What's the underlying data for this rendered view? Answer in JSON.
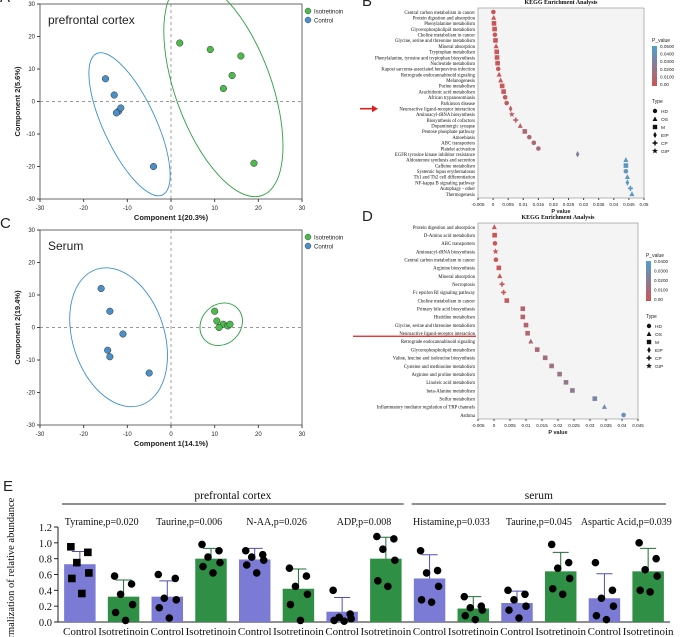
{
  "colors": {
    "green": "#2ea043",
    "blue": "#3b8fce",
    "greenDot": "#4cbb4c",
    "blueDot": "#4a90c8",
    "barBlue": "#7b7bd6",
    "barGreen": "#2f8f45"
  },
  "chart_data": [
    {
      "id": "A",
      "type": "scatter",
      "panel_label": "A",
      "title": "prefrontal cortex",
      "xlabel": "Component 1(20.3%)",
      "ylabel": "Component 2(5.6%)",
      "xlim": [
        -30,
        30
      ],
      "ylim": [
        -30,
        30
      ],
      "xticks": [
        -30,
        -20,
        -10,
        0,
        10,
        20,
        30
      ],
      "yticks": [
        -30,
        -20,
        -10,
        0,
        10,
        20,
        30
      ],
      "legend": [
        "Isotretinoin",
        "Control"
      ],
      "series": [
        {
          "name": "Isotretinoin",
          "color": "#4cbb4c",
          "x": [
            2,
            9,
            16,
            12,
            14,
            19
          ],
          "y": [
            18,
            16,
            14,
            4,
            8,
            -19
          ]
        },
        {
          "name": "Control",
          "color": "#4a90c8",
          "x": [
            -15,
            -13,
            -12,
            -11.5,
            -12.5,
            -4
          ],
          "y": [
            7,
            2,
            -3,
            -2,
            -3.5,
            -20
          ]
        }
      ],
      "ellipses": [
        {
          "series": "Isotretinoin",
          "cx": 12,
          "cy": 4,
          "rx": 11,
          "ry": 35,
          "angle": -20
        },
        {
          "series": "Control",
          "cx": -9.5,
          "cy": -7,
          "rx": 6,
          "ry": 24,
          "angle": -25
        }
      ]
    },
    {
      "id": "B",
      "type": "scatter",
      "panel_label": "B",
      "title": "KEGG Enrichment Analysis",
      "xlabel": "P value",
      "xlim": [
        -0.005,
        0.05
      ],
      "xticks": [
        "-0.005",
        "0",
        "0.005",
        "0.01",
        "0.015",
        "0.02",
        "0.025",
        "0.03",
        "0.035",
        "0.04",
        "0.045",
        "0.05"
      ],
      "highlight": "Neuroactive ligand-receptor interaction",
      "legend_color_title": "P_value",
      "legend_color_ticks": [
        "0.0500",
        "0.0400",
        "0.0300",
        "0.0200",
        "0.0100",
        "0.00"
      ],
      "legend_type_title": "Type",
      "types": [
        "HD",
        "OS",
        "M",
        "EIP",
        "CP",
        "GIP"
      ],
      "categories": [
        "Central carbon metabolism in cancer",
        "Protein digestion and absorption",
        "Phenylalanine metabolism",
        "Glycerophospholipid metabolism",
        "Choline metabolism in cancer",
        "Glycine, serine and threonine metabolism",
        "Mineral absorption",
        "Tryptophan metabolism",
        "Phenylalanine, tyrosine and tryptophan biosynthesis",
        "Nucleotide metabolism",
        "Kaposi sarcoma-associated herpesvirus infection",
        "Retrograde endocannabinoid signaling",
        "Melanogenesis",
        "Purine metabolism",
        "Arachidonic acid metabolism",
        "African trypanosomiasis",
        "Parkinson disease",
        "Neuroactive ligand-receptor interaction",
        "Aminoacyl-tRNA biosynthesis",
        "Biosynthesis of cofactors",
        "Dopaminergic synapse",
        "Pentose phosphate pathway",
        "Amoebiasis",
        "ABC transporters",
        "Platelet activation",
        "EGFR tyrosine kinase inhibitor resistance",
        "Aldosterone synthesis and secretion",
        "Caffeine metabolism",
        "Systemic lupus erythematosus",
        "Th1 and Th2 cell differentiation",
        "NF-kappa B signaling pathway",
        "Autophagy - other",
        "Thermogenesis"
      ],
      "values": [
        0.0001,
        0.0002,
        0.0003,
        0.0005,
        0.0006,
        0.0008,
        0.001,
        0.0012,
        0.0013,
        0.0015,
        0.0017,
        0.002,
        0.0025,
        0.003,
        0.0035,
        0.004,
        0.0045,
        0.0058,
        0.0062,
        0.0075,
        0.009,
        0.0105,
        0.012,
        0.0135,
        0.015,
        0.028,
        0.044,
        0.044,
        0.044,
        0.0445,
        0.0445,
        0.0455,
        0.046
      ],
      "point_types": [
        "HD",
        "OS",
        "M",
        "M",
        "HD",
        "M",
        "OS",
        "M",
        "M",
        "M",
        "HD",
        "OS",
        "OS",
        "M",
        "M",
        "HD",
        "HD",
        "EIP",
        "GIP",
        "CP",
        "OS",
        "M",
        "HD",
        "HD",
        "HD",
        "EIP",
        "OS",
        "M",
        "HD",
        "OS",
        "EIP",
        "CP",
        "OS"
      ]
    },
    {
      "id": "C",
      "type": "scatter",
      "panel_label": "C",
      "title": "Serum",
      "xlabel": "Component 1(14.1%)",
      "ylabel": "Component 2(19.4%)",
      "xlim": [
        -30,
        30
      ],
      "ylim": [
        -30,
        30
      ],
      "xticks": [
        -30,
        -20,
        -10,
        0,
        10,
        20,
        30
      ],
      "yticks": [
        -30,
        -20,
        -10,
        0,
        10,
        20,
        30
      ],
      "legend": [
        "Isotretinoin",
        "Control"
      ],
      "series": [
        {
          "name": "Isotretinoin",
          "color": "#4cbb4c",
          "x": [
            10,
            10.5,
            12,
            13,
            13.5,
            11
          ],
          "y": [
            5,
            2,
            1,
            0.5,
            1,
            0
          ]
        },
        {
          "name": "Control",
          "color": "#4a90c8",
          "x": [
            -16,
            -14,
            -11,
            -14.5,
            -14,
            -5
          ],
          "y": [
            12,
            5,
            -2,
            -7,
            -9,
            -14
          ]
        }
      ],
      "ellipses": [
        {
          "series": "Isotretinoin",
          "cx": 11.5,
          "cy": 1,
          "rx": 4.5,
          "ry": 7,
          "angle": 45
        },
        {
          "series": "Control",
          "cx": -12,
          "cy": -3,
          "rx": 10.5,
          "ry": 22,
          "angle": -18
        }
      ]
    },
    {
      "id": "D",
      "type": "scatter",
      "panel_label": "D",
      "title": "KEGG Enrichment Analysis",
      "xlabel": "P value",
      "xlim": [
        -0.005,
        0.045
      ],
      "xticks": [
        "-0.005",
        "0",
        "0.005",
        "0.01",
        "0.015",
        "0.02",
        "0.025",
        "0.03",
        "0.035",
        "0.04",
        "0.045"
      ],
      "highlight": "Neuroactive ligand-receptor interaction",
      "legend_color_title": "P_value",
      "legend_color_ticks": [
        "0.0400",
        "0.0300",
        "0.0200",
        "0.0100",
        "0.00"
      ],
      "legend_type_title": "Type",
      "types": [
        "HD",
        "OS",
        "M",
        "EIP",
        "CP",
        "GIP"
      ],
      "categories": [
        "Protein digestion and absorption",
        "D-Amino acid metabolism",
        "ABC transporters",
        "Aminoacyl-tRNA biosynthesis",
        "Central carbon metabolism in cancer",
        "Arginine biosynthesis",
        "Mineral absorption",
        "Necroptosis",
        "Fc epsilon RI signaling pathway",
        "Choline metabolism in cancer",
        "Primary bile acid biosynthesis",
        "Histidine metabolism",
        "Glycine, serine and threonine metabolism",
        "Neuroactive ligand-receptor interaction",
        "Retrograde endocannabinoid signaling",
        "Glycerophospholipid metabolism",
        "Valine, leucine and isoleucine biosynthesis",
        "Cysteine and methionine metabolism",
        "Arginine and proline metabolism",
        "Linoleic acid metabolism",
        "beta-Alanine metabolism",
        "Sulfur metabolism",
        "Inflammatory mediator regulation of TRP channels",
        "Asthma"
      ],
      "values": [
        0.0001,
        0.0002,
        0.0003,
        0.0005,
        0.0006,
        0.0015,
        0.0018,
        0.0025,
        0.003,
        0.004,
        0.009,
        0.009,
        0.01,
        0.0105,
        0.0115,
        0.0135,
        0.016,
        0.018,
        0.0205,
        0.0225,
        0.0245,
        0.0315,
        0.0345,
        0.0405
      ],
      "point_types": [
        "OS",
        "M",
        "HD",
        "GIP",
        "HD",
        "M",
        "OS",
        "CP",
        "CP",
        "M",
        "M",
        "M",
        "M",
        "M",
        "OS",
        "M",
        "M",
        "M",
        "M",
        "M",
        "M",
        "M",
        "OS",
        "HD"
      ]
    },
    {
      "id": "E",
      "type": "bar",
      "panel_label": "E",
      "ylabel": "Normalization of relative abundance",
      "ylim": [
        0,
        1.2
      ],
      "yticks": [
        "0.0",
        "0.2",
        "0.4",
        "0.6",
        "0.8",
        "1.0",
        "1.2"
      ],
      "groups": [
        {
          "label": "prefrontal cortex",
          "from": 0,
          "to": 7
        },
        {
          "label": "serum",
          "from": 8,
          "to": 13
        }
      ],
      "annotations": [
        "Tyramine,p=0.020",
        "Taurine,p=0.006",
        "N-AA,p=0.026",
        "ADP,p=0.008",
        "Histamine,p=0.033",
        "Taurine,p=0.045",
        "Aspartic Acid,p=0.039"
      ],
      "categories": [
        "Control",
        "Isotretinoin",
        "Control",
        "Isotretinoin",
        "Control",
        "Isotretinoin",
        "Control",
        "Isotretinoin",
        "Control",
        "Isotretinoin",
        "Control",
        "Isotretinoin",
        "Control",
        "Isotretinoin"
      ],
      "values": [
        0.73,
        0.32,
        0.32,
        0.8,
        0.79,
        0.42,
        0.13,
        0.8,
        0.55,
        0.17,
        0.24,
        0.64,
        0.3,
        0.64
      ],
      "errors": [
        0.16,
        0.21,
        0.2,
        0.13,
        0.14,
        0.25,
        0.18,
        0.27,
        0.3,
        0.15,
        0.15,
        0.24,
        0.31,
        0.29
      ],
      "points": [
        [
          0.95,
          0.88,
          0.75,
          0.62,
          0.55,
          0.36
        ],
        [
          0.58,
          0.48,
          0.35,
          0.22,
          0.12,
          0.02
        ],
        [
          0.6,
          0.55,
          0.3,
          0.28,
          0.18,
          0.05
        ],
        [
          0.98,
          0.9,
          0.82,
          0.75,
          0.7,
          0.62
        ],
        [
          0.9,
          0.85,
          0.82,
          0.78,
          0.72,
          0.62
        ],
        [
          0.68,
          0.58,
          0.45,
          0.35,
          0.22,
          0.02
        ],
        [
          0.4,
          0.1,
          0.06,
          0.04,
          0.02,
          0.01
        ],
        [
          1.08,
          1.05,
          0.92,
          0.78,
          0.52,
          0.45
        ],
        [
          0.9,
          0.65,
          0.62,
          0.45,
          0.28,
          0.25
        ],
        [
          0.32,
          0.2,
          0.18,
          0.15,
          0.08,
          0.03
        ],
        [
          0.4,
          0.35,
          0.28,
          0.2,
          0.15,
          0.05
        ],
        [
          0.98,
          0.75,
          0.68,
          0.55,
          0.42,
          0.35
        ],
        [
          0.75,
          0.4,
          0.3,
          0.2,
          0.08,
          0.03
        ],
        [
          1.0,
          0.8,
          0.66,
          0.58,
          0.4,
          0.38
        ]
      ],
      "point_markers": [
        "square",
        "circle",
        "circle",
        "circle",
        "circle",
        "circle",
        "circle",
        "circle",
        "circle",
        "circle",
        "circle",
        "circle",
        "circle",
        "circle"
      ]
    }
  ]
}
